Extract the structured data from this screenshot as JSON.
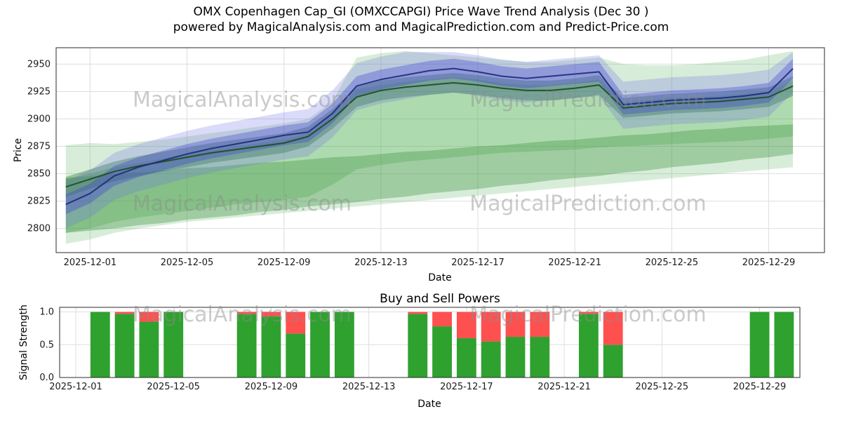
{
  "header": {
    "title_line1": "OMX Copenhagen Cap_GI (OMXCCAPGI) Price Wave Trend Analysis (Dec 30 )",
    "title_line2": "powered by MagicalAnalysis.com and MagicalPrediction.com and Predict-Price.com"
  },
  "watermarks": {
    "left": "MagicalAnalysis.com",
    "right": "MagicalPrediction.com"
  },
  "chart_data": [
    {
      "type": "area",
      "title": "OMX Copenhagen Cap_GI (OMXCCAPGI) Price Wave Trend Analysis (Dec 30 )",
      "xlabel": "Date",
      "ylabel": "Price",
      "grid": true,
      "ylim": [
        2778,
        2965
      ],
      "yticks": [
        2800,
        2825,
        2850,
        2875,
        2900,
        2925,
        2950
      ],
      "x_tick_days": [
        1,
        5,
        9,
        13,
        17,
        21,
        25,
        29
      ],
      "x_tick_labels": [
        "2025-12-01",
        "2025-12-05",
        "2025-12-09",
        "2025-12-13",
        "2025-12-17",
        "2025-12-21",
        "2025-12-25",
        "2025-12-29"
      ],
      "days": [
        0,
        1,
        2,
        3,
        4,
        5,
        6,
        7,
        8,
        9,
        10,
        11,
        12,
        13,
        14,
        15,
        16,
        17,
        18,
        19,
        20,
        21,
        22,
        23,
        24,
        25,
        26,
        27,
        28,
        29,
        30
      ],
      "bands": [
        {
          "name": "green-outer",
          "color": "#4caf50",
          "opacity": 0.22,
          "lower": [
            2786,
            2790,
            2796,
            2800,
            2803,
            2806,
            2808,
            2810,
            2812,
            2814,
            2816,
            2818,
            2820,
            2822,
            2824,
            2826,
            2828,
            2830,
            2832,
            2834,
            2836,
            2838,
            2840,
            2842,
            2844,
            2846,
            2848,
            2850,
            2852,
            2854,
            2856
          ],
          "upper": [
            2876,
            2878,
            2877,
            2879,
            2881,
            2884,
            2887,
            2890,
            2893,
            2896,
            2900,
            2916,
            2956,
            2960,
            2962,
            2960,
            2958,
            2956,
            2954,
            2952,
            2952,
            2954,
            2956,
            2950,
            2949,
            2949,
            2950,
            2952,
            2954,
            2958,
            2962
          ]
        },
        {
          "name": "green-mid",
          "color": "#4caf50",
          "opacity": 0.3,
          "lower": [
            2796,
            2800,
            2806,
            2810,
            2813,
            2816,
            2819,
            2822,
            2824,
            2826,
            2829,
            2840,
            2854,
            2858,
            2861,
            2863,
            2865,
            2867,
            2869,
            2870,
            2871,
            2872,
            2874,
            2875,
            2876,
            2877,
            2878,
            2879,
            2880,
            2882,
            2884
          ],
          "upper": [
            2845,
            2850,
            2856,
            2860,
            2864,
            2868,
            2872,
            2875,
            2878,
            2881,
            2887,
            2905,
            2927,
            2931,
            2934,
            2936,
            2938,
            2936,
            2933,
            2931,
            2931,
            2933,
            2936,
            2915,
            2917,
            2919,
            2920,
            2921,
            2923,
            2925,
            2935
          ]
        },
        {
          "name": "green-trend-channel",
          "color": "#388e3c",
          "opacity": 0.35,
          "lower": [
            2796,
            2798,
            2800,
            2803,
            2805,
            2808,
            2810,
            2812,
            2815,
            2817,
            2820,
            2822,
            2824,
            2827,
            2829,
            2832,
            2834,
            2836,
            2839,
            2841,
            2844,
            2846,
            2848,
            2851,
            2853,
            2856,
            2858,
            2860,
            2863,
            2865,
            2868
          ],
          "upper": [
            2846,
            2848,
            2850,
            2851,
            2853,
            2855,
            2856,
            2858,
            2860,
            2861,
            2863,
            2865,
            2866,
            2868,
            2870,
            2871,
            2873,
            2875,
            2876,
            2878,
            2880,
            2881,
            2883,
            2885,
            2886,
            2888,
            2890,
            2891,
            2893,
            2894,
            2895
          ]
        },
        {
          "name": "green-inner",
          "color": "#2e7d32",
          "opacity": 0.4,
          "lower": [
            2829,
            2836,
            2843,
            2848,
            2852,
            2856,
            2860,
            2863,
            2866,
            2869,
            2875,
            2891,
            2911,
            2917,
            2920,
            2922,
            2924,
            2922,
            2919,
            2917,
            2917,
            2919,
            2922,
            2901,
            2903,
            2905,
            2906,
            2907,
            2909,
            2911,
            2921
          ],
          "upper": [
            2847,
            2854,
            2861,
            2866,
            2870,
            2874,
            2878,
            2881,
            2884,
            2887,
            2893,
            2909,
            2929,
            2935,
            2938,
            2940,
            2942,
            2940,
            2937,
            2935,
            2935,
            2937,
            2940,
            2919,
            2921,
            2923,
            2924,
            2925,
            2927,
            2929,
            2939
          ]
        },
        {
          "name": "blue-outer",
          "color": "#6a6ae8",
          "opacity": 0.25,
          "lower": [
            2800,
            2810,
            2826,
            2834,
            2840,
            2846,
            2851,
            2855,
            2859,
            2863,
            2866,
            2883,
            2908,
            2914,
            2918,
            2922,
            2924,
            2921,
            2917,
            2915,
            2917,
            2919,
            2921,
            2891,
            2893,
            2895,
            2896,
            2897,
            2899,
            2902,
            2924
          ],
          "upper": [
            2843,
            2853,
            2869,
            2877,
            2883,
            2889,
            2894,
            2898,
            2902,
            2906,
            2909,
            2926,
            2951,
            2957,
            2961,
            2961,
            2961,
            2958,
            2954,
            2952,
            2954,
            2956,
            2958,
            2934,
            2936,
            2938,
            2939,
            2940,
            2942,
            2945,
            2961
          ]
        },
        {
          "name": "blue-inner",
          "color": "#3f3fd6",
          "opacity": 0.35,
          "lower": [
            2813,
            2823,
            2839,
            2847,
            2853,
            2859,
            2864,
            2868,
            2872,
            2876,
            2879,
            2896,
            2921,
            2927,
            2931,
            2935,
            2937,
            2934,
            2930,
            2928,
            2930,
            2932,
            2934,
            2904,
            2906,
            2908,
            2909,
            2910,
            2912,
            2915,
            2937
          ],
          "upper": [
            2831,
            2841,
            2857,
            2865,
            2871,
            2877,
            2882,
            2886,
            2890,
            2894,
            2897,
            2914,
            2939,
            2945,
            2949,
            2953,
            2955,
            2952,
            2948,
            2946,
            2948,
            2950,
            2952,
            2922,
            2924,
            2926,
            2927,
            2928,
            2930,
            2933,
            2955
          ]
        }
      ],
      "lines": [
        {
          "name": "green-price-line",
          "color": "#1b4d1b",
          "width": 2,
          "opacity": 0.9,
          "values": [
            2838,
            2845,
            2852,
            2857,
            2861,
            2865,
            2869,
            2872,
            2875,
            2878,
            2884,
            2900,
            2920,
            2926,
            2929,
            2931,
            2933,
            2931,
            2928,
            2926,
            2926,
            2928,
            2931,
            2910,
            2912,
            2914,
            2915,
            2916,
            2918,
            2920,
            2930
          ]
        },
        {
          "name": "blue-price-line",
          "color": "#1e2a78",
          "width": 2,
          "opacity": 0.9,
          "values": [
            2822,
            2832,
            2848,
            2856,
            2862,
            2868,
            2873,
            2877,
            2881,
            2885,
            2888,
            2905,
            2930,
            2936,
            2940,
            2944,
            2946,
            2943,
            2939,
            2937,
            2939,
            2941,
            2943,
            2913,
            2915,
            2917,
            2918,
            2919,
            2921,
            2924,
            2946
          ]
        }
      ]
    },
    {
      "type": "bar",
      "title": "Buy and Sell Powers",
      "xlabel": "Date",
      "ylabel": "Signal Strength",
      "grid": true,
      "ylim": [
        0,
        1.07
      ],
      "yticks": [
        0.0,
        0.5,
        1.0
      ],
      "ytick_labels": [
        "0.0",
        "0.5",
        "1.0"
      ],
      "x_tick_days": [
        1,
        5,
        9,
        13,
        17,
        21,
        25,
        29
      ],
      "x_tick_labels": [
        "2025-12-01",
        "2025-12-05",
        "2025-12-09",
        "2025-12-13",
        "2025-12-17",
        "2025-12-21",
        "2025-12-25",
        "2025-12-29"
      ],
      "buy_color": "#2fa12f",
      "sell_color": "#ff5050",
      "bars": [
        {
          "date": "2025-12-02",
          "day": 2,
          "buy": 1.0,
          "sell": 0.0
        },
        {
          "date": "2025-12-03",
          "day": 3,
          "buy": 0.97,
          "sell": 0.03
        },
        {
          "date": "2025-12-04",
          "day": 4,
          "buy": 0.85,
          "sell": 0.15
        },
        {
          "date": "2025-12-05",
          "day": 5,
          "buy": 1.0,
          "sell": 0.0
        },
        {
          "date": "2025-12-08",
          "day": 8,
          "buy": 0.97,
          "sell": 0.03
        },
        {
          "date": "2025-12-09",
          "day": 9,
          "buy": 0.93,
          "sell": 0.07
        },
        {
          "date": "2025-12-10",
          "day": 10,
          "buy": 0.67,
          "sell": 0.33
        },
        {
          "date": "2025-12-11",
          "day": 11,
          "buy": 1.0,
          "sell": 0.0
        },
        {
          "date": "2025-12-12",
          "day": 12,
          "buy": 1.0,
          "sell": 0.0
        },
        {
          "date": "2025-12-15",
          "day": 15,
          "buy": 0.97,
          "sell": 0.03
        },
        {
          "date": "2025-12-16",
          "day": 16,
          "buy": 0.78,
          "sell": 0.22
        },
        {
          "date": "2025-12-17",
          "day": 17,
          "buy": 0.6,
          "sell": 0.4
        },
        {
          "date": "2025-12-18",
          "day": 18,
          "buy": 0.55,
          "sell": 0.45
        },
        {
          "date": "2025-12-19",
          "day": 19,
          "buy": 0.62,
          "sell": 0.38
        },
        {
          "date": "2025-12-20",
          "day": 20,
          "buy": 0.62,
          "sell": 0.38
        },
        {
          "date": "2025-12-22",
          "day": 22,
          "buy": 0.97,
          "sell": 0.03
        },
        {
          "date": "2025-12-23",
          "day": 23,
          "buy": 0.5,
          "sell": 0.5
        },
        {
          "date": "2025-12-29",
          "day": 29,
          "buy": 1.0,
          "sell": 0.0
        },
        {
          "date": "2025-12-30",
          "day": 30,
          "buy": 1.0,
          "sell": 0.0
        }
      ]
    }
  ]
}
